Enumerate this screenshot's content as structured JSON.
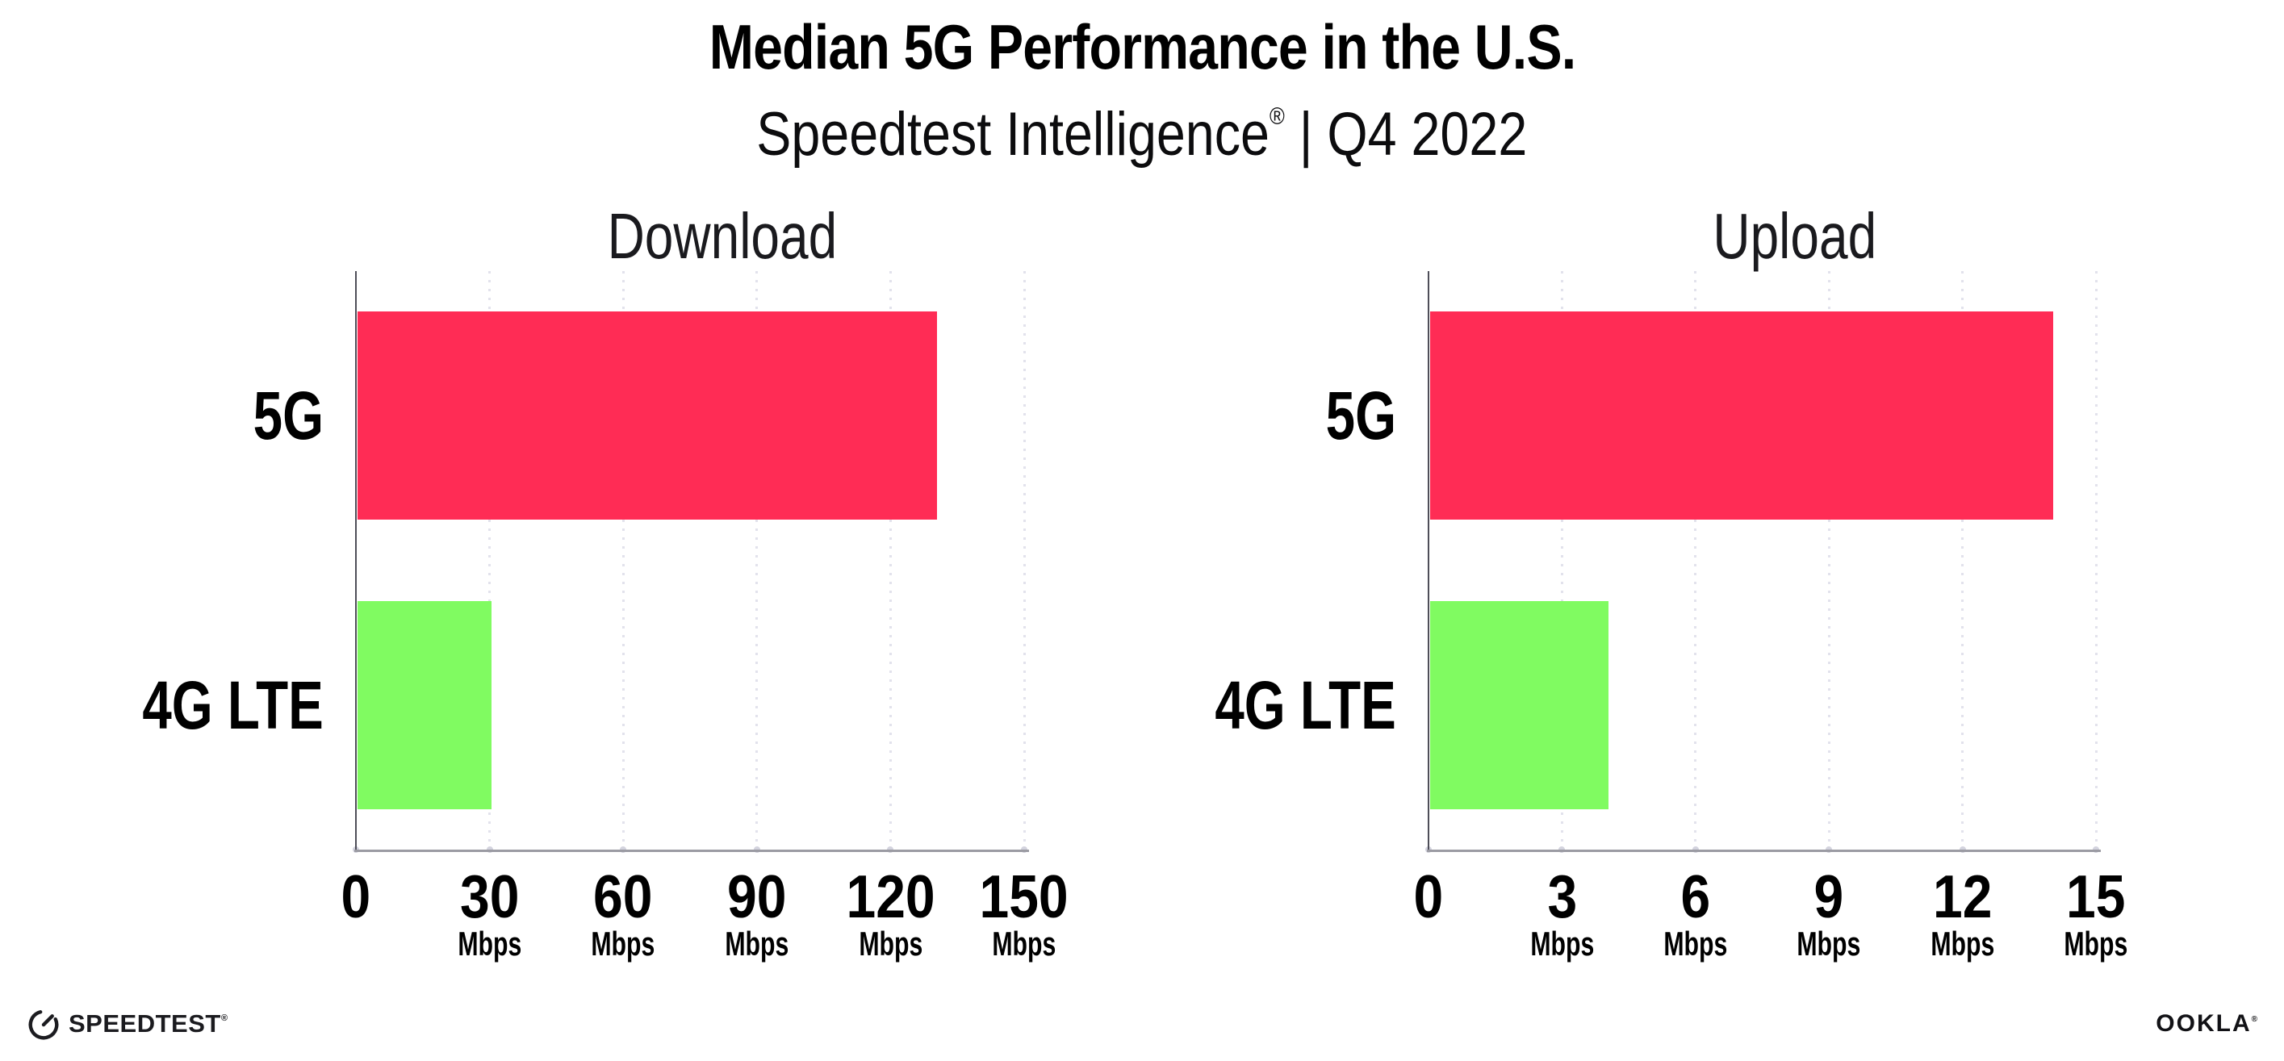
{
  "header": {
    "title": "Median 5G Performance in the U.S.",
    "subtitle": {
      "brand": "Speedtest Intelligence",
      "reg": "®",
      "rest": " | Q4 2022"
    }
  },
  "chart_data": [
    {
      "type": "bar",
      "orientation": "horizontal",
      "title": "Download",
      "categories": [
        "5G",
        "4G LTE"
      ],
      "values": [
        130,
        30
      ],
      "unit": "Mbps",
      "tick_unit": "Mbps",
      "xlabel": "",
      "ylabel": "",
      "xlim": [
        0,
        150
      ],
      "xticks": [
        0,
        30,
        60,
        90,
        120,
        150
      ],
      "grid": "vertical-dotted",
      "legend": "none",
      "bar_colors": [
        "#ff2c55",
        "#80fb61"
      ]
    },
    {
      "type": "bar",
      "orientation": "horizontal",
      "title": "Upload",
      "categories": [
        "5G",
        "4G LTE"
      ],
      "values": [
        14,
        4
      ],
      "unit": "Mbps",
      "tick_unit": "Mbps",
      "xlabel": "",
      "ylabel": "",
      "xlim": [
        0,
        15
      ],
      "xticks": [
        0,
        3,
        6,
        9,
        12,
        15
      ],
      "grid": "vertical-dotted",
      "legend": "none",
      "bar_colors": [
        "#ff2c55",
        "#80fb61"
      ]
    }
  ],
  "colors": {
    "bar_5g": "#ff2c55",
    "bar_4g_lte": "#80fb61",
    "gridline": "#e2e2ec",
    "x_axis": "#9b9ba3",
    "y_axis": "#4e4e58",
    "text": "#000000",
    "background": "#ffffff"
  },
  "footer": {
    "speedtest_label": "SPEEDTEST",
    "speedtest_mark": "®",
    "ookla_label": "OOKLA",
    "ookla_mark": "®"
  }
}
